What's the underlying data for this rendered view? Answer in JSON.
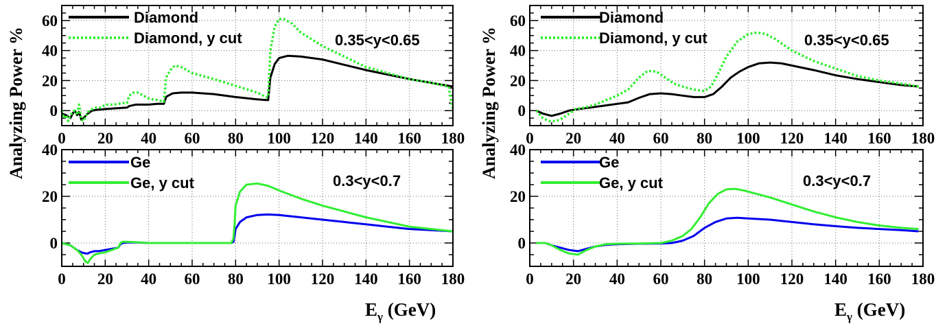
{
  "chart_data": [
    {
      "type": "line",
      "panel": "top-left",
      "xlim": [
        0,
        180
      ],
      "ylim": [
        -10,
        70
      ],
      "xticks": [
        0,
        20,
        40,
        60,
        80,
        100,
        120,
        140,
        160,
        180
      ],
      "yticks": [
        0,
        20,
        40,
        60
      ],
      "annotation": "0.35<y<0.65",
      "legend_position": "top-left",
      "series": [
        {
          "name": "Diamond",
          "color": "#000000",
          "style": "solid",
          "x": [
            0,
            2,
            4,
            5,
            6,
            7,
            8,
            9,
            10,
            12,
            14,
            16,
            20,
            25,
            30,
            31,
            34,
            40,
            44,
            47,
            48,
            49,
            51,
            55,
            60,
            70,
            80,
            90,
            94,
            95,
            96,
            98,
            100,
            104,
            110,
            120,
            130,
            140,
            150,
            160,
            170,
            180
          ],
          "y": [
            -2,
            -3,
            -5,
            -2,
            0,
            -3,
            -1,
            -6,
            -5,
            -2,
            0,
            0.5,
            1,
            1.5,
            2,
            3,
            4,
            4,
            4.5,
            4.5,
            9,
            10,
            11.5,
            12,
            12,
            11,
            9,
            7.5,
            7,
            7,
            22,
            31,
            35,
            36.5,
            36,
            34,
            30.5,
            27,
            24,
            21,
            18.5,
            16
          ]
        },
        {
          "name": "Diamond, y cut",
          "color": "#33ee33",
          "style": "dotted",
          "x": [
            0,
            1,
            2,
            3,
            4,
            5,
            6,
            7,
            8,
            9,
            10,
            12,
            14,
            16,
            18,
            20,
            24,
            28,
            30,
            31,
            33,
            35,
            40,
            44,
            47,
            48,
            50,
            52,
            55,
            60,
            70,
            80,
            90,
            94,
            95,
            96,
            98,
            100,
            102,
            106,
            110,
            120,
            130,
            140,
            150,
            160,
            170,
            178,
            180
          ],
          "y": [
            0,
            -5,
            -3,
            -7,
            -3,
            -1,
            0,
            -3,
            4,
            -6,
            -7,
            -1,
            1,
            2,
            2,
            4,
            4,
            5,
            5,
            10,
            12,
            12,
            8,
            7,
            6,
            22,
            27,
            30,
            29,
            25,
            21,
            16.5,
            12,
            9,
            9,
            40,
            56,
            61,
            61,
            58,
            52,
            43,
            36,
            29,
            25,
            21,
            18.5,
            16,
            0
          ]
        }
      ]
    },
    {
      "type": "line",
      "panel": "top-right",
      "xlim": [
        0,
        180
      ],
      "ylim": [
        -10,
        70
      ],
      "xticks": [
        0,
        20,
        40,
        60,
        80,
        100,
        120,
        140,
        160,
        180
      ],
      "yticks": [
        0,
        20,
        40,
        60
      ],
      "annotation": "0.35<y<0.65",
      "legend_position": "top-left",
      "series": [
        {
          "name": "Diamond",
          "color": "#000000",
          "style": "solid",
          "x": [
            3,
            6,
            10,
            14,
            18,
            20,
            25,
            30,
            35,
            40,
            45,
            50,
            55,
            60,
            65,
            70,
            75,
            80,
            84,
            88,
            92,
            96,
            100,
            105,
            110,
            115,
            120,
            130,
            140,
            150,
            160,
            170,
            178
          ],
          "y": [
            0,
            -2,
            -3.5,
            -2,
            0,
            0.5,
            1.5,
            2.5,
            3.5,
            4.5,
            5.5,
            8.5,
            11,
            11.5,
            11,
            10,
            9,
            9,
            11,
            16,
            22,
            26,
            29,
            31.5,
            32,
            31.5,
            30,
            27,
            23.5,
            21,
            19,
            17,
            16
          ]
        },
        {
          "name": "Diamond, y cut",
          "color": "#33ee33",
          "style": "dotted",
          "x": [
            3,
            6,
            9,
            12,
            15,
            18,
            21,
            25,
            30,
            35,
            40,
            45,
            50,
            54,
            58,
            62,
            66,
            70,
            75,
            80,
            83,
            86,
            90,
            95,
            100,
            104,
            108,
            112,
            116,
            120,
            130,
            140,
            150,
            160,
            170,
            178
          ],
          "y": [
            0,
            -5,
            -7,
            -7,
            -5,
            -2,
            1,
            2,
            4,
            7,
            10,
            14,
            22,
            26.5,
            26,
            22,
            18,
            16,
            14,
            13,
            16,
            24,
            36,
            46,
            51,
            52,
            51,
            48,
            44,
            40,
            33,
            28,
            23,
            20,
            18,
            16
          ]
        }
      ]
    },
    {
      "type": "line",
      "panel": "bottom-left",
      "xlim": [
        0,
        180
      ],
      "ylim": [
        -10,
        40
      ],
      "xticks": [
        0,
        20,
        40,
        60,
        80,
        100,
        120,
        140,
        160,
        180
      ],
      "yticks": [
        0,
        20,
        40
      ],
      "annotation": "0.3<y<0.7",
      "legend_position": "top-left",
      "series": [
        {
          "name": "Ge",
          "color": "#0000ee",
          "style": "solid",
          "x": [
            0,
            4,
            7,
            9,
            11,
            12,
            13,
            15,
            17,
            20,
            23,
            26,
            27,
            28,
            30,
            35,
            40,
            50,
            60,
            70,
            78,
            79,
            79.5,
            80,
            82,
            85,
            90,
            95,
            100,
            110,
            120,
            130,
            140,
            150,
            160,
            170,
            180
          ],
          "y": [
            0,
            -1,
            -3,
            -4,
            -4.5,
            -4.5,
            -4,
            -3.5,
            -3.5,
            -3,
            -2.5,
            -2,
            -0.5,
            0,
            0.2,
            0.2,
            0,
            0,
            0,
            0,
            0,
            0.5,
            3,
            6,
            9,
            11,
            12,
            12.2,
            12,
            11,
            10,
            9,
            8,
            7,
            6,
            5.5,
            5
          ]
        },
        {
          "name": "Ge, y cut",
          "color": "#33ee33",
          "style": "solid",
          "x": [
            0,
            4,
            7,
            9,
            11,
            12,
            13,
            15,
            17,
            20,
            23,
            26,
            27,
            28,
            30,
            35,
            40,
            50,
            60,
            70,
            78,
            79,
            79.5,
            80,
            82,
            85,
            90,
            95,
            100,
            110,
            120,
            130,
            140,
            150,
            160,
            170,
            180
          ],
          "y": [
            0,
            -1,
            -3,
            -5,
            -8,
            -8.5,
            -7,
            -5,
            -4.5,
            -4,
            -3,
            -2,
            0,
            0.5,
            0.5,
            0.3,
            0,
            0,
            0,
            0,
            0,
            2,
            8,
            16,
            22,
            25,
            25.5,
            24.5,
            22.5,
            19,
            16,
            13.5,
            11,
            9,
            7,
            6,
            5
          ]
        }
      ]
    },
    {
      "type": "line",
      "panel": "bottom-right",
      "xlim": [
        0,
        180
      ],
      "ylim": [
        -10,
        40
      ],
      "xticks": [
        0,
        20,
        40,
        60,
        80,
        100,
        120,
        140,
        160,
        180
      ],
      "yticks": [
        0,
        20,
        40
      ],
      "annotation": "0.3<y<0.7",
      "legend_position": "top-left",
      "series": [
        {
          "name": "Ge",
          "color": "#0000ee",
          "style": "solid",
          "x": [
            3,
            7,
            10,
            14,
            18,
            22,
            26,
            30,
            35,
            40,
            50,
            60,
            65,
            70,
            75,
            80,
            85,
            90,
            95,
            100,
            110,
            120,
            130,
            140,
            150,
            160,
            170,
            178
          ],
          "y": [
            0,
            0,
            -1,
            -2,
            -3,
            -3.5,
            -2.5,
            -1.5,
            -0.8,
            -0.5,
            -0.3,
            -0.2,
            0,
            1,
            3,
            6.5,
            9,
            10.5,
            10.8,
            10.5,
            10,
            9,
            8,
            7.2,
            6.5,
            6,
            5.5,
            5
          ]
        },
        {
          "name": "Ge, y cut",
          "color": "#33ee33",
          "style": "solid",
          "x": [
            3,
            7,
            10,
            14,
            18,
            22,
            26,
            30,
            35,
            40,
            50,
            60,
            65,
            70,
            74,
            78,
            82,
            86,
            90,
            94,
            98,
            104,
            110,
            120,
            130,
            140,
            150,
            160,
            170,
            178
          ],
          "y": [
            0,
            0,
            -1,
            -3,
            -4.5,
            -5,
            -3,
            -1.5,
            -0.5,
            -0.3,
            -0.2,
            0,
            1,
            3,
            6,
            11,
            17,
            21,
            23,
            23.2,
            22.5,
            21,
            19.5,
            16.5,
            13.5,
            11,
            9,
            7.5,
            6.5,
            6
          ]
        }
      ]
    }
  ],
  "labels": {
    "ylabel_left": "Analyzing Power %",
    "ylabel_right": "Analyzing Power %",
    "xlabel_main": "E",
    "xlabel_sub": "γ",
    "xlabel_unit": " (GeV)"
  }
}
